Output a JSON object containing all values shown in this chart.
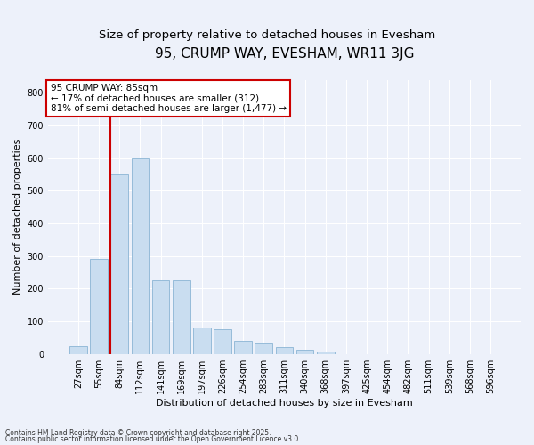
{
  "title": "95, CRUMP WAY, EVESHAM, WR11 3JG",
  "subtitle": "Size of property relative to detached houses in Evesham",
  "xlabel": "Distribution of detached houses by size in Evesham",
  "ylabel": "Number of detached properties",
  "footnote1": "Contains HM Land Registry data © Crown copyright and database right 2025.",
  "footnote2": "Contains public sector information licensed under the Open Government Licence v3.0.",
  "categories": [
    "27sqm",
    "55sqm",
    "84sqm",
    "112sqm",
    "141sqm",
    "169sqm",
    "197sqm",
    "226sqm",
    "254sqm",
    "283sqm",
    "311sqm",
    "340sqm",
    "368sqm",
    "397sqm",
    "425sqm",
    "454sqm",
    "482sqm",
    "511sqm",
    "539sqm",
    "568sqm",
    "596sqm"
  ],
  "values": [
    25,
    290,
    550,
    600,
    225,
    225,
    80,
    75,
    40,
    35,
    20,
    12,
    8,
    0,
    0,
    0,
    0,
    0,
    0,
    0,
    0
  ],
  "bar_color": "#c9ddf0",
  "bar_edge_color": "#8ab4d4",
  "vline_color": "#cc0000",
  "vline_x": 1.575,
  "annotation_text": "95 CRUMP WAY: 85sqm\n← 17% of detached houses are smaller (312)\n81% of semi-detached houses are larger (1,477) →",
  "annotation_box_facecolor": "#ffffff",
  "annotation_box_edgecolor": "#cc0000",
  "ylim": [
    0,
    840
  ],
  "yticks": [
    0,
    100,
    200,
    300,
    400,
    500,
    600,
    700,
    800
  ],
  "bg_color": "#edf1fa",
  "grid_color": "#ffffff",
  "title_fontsize": 11,
  "subtitle_fontsize": 9.5,
  "xlabel_fontsize": 8,
  "ylabel_fontsize": 8,
  "tick_fontsize": 7,
  "annot_fontsize": 7.5
}
